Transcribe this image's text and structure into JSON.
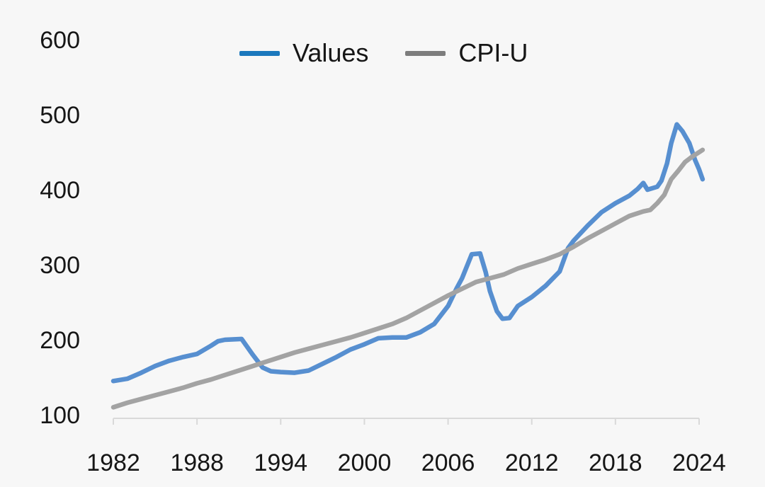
{
  "background": "#f7f7f7",
  "text_color": "#161616",
  "axis_color": "#d9d9d9",
  "legend": {
    "items": [
      {
        "label": "Values",
        "swatch_color": "#1b78bd"
      },
      {
        "label": "CPI-U",
        "swatch_color": "#7d7d7d"
      }
    ]
  },
  "chart_data": {
    "type": "line",
    "title": "",
    "xlabel": "",
    "ylabel": "",
    "grid": false,
    "legend_position": "top-center",
    "x_ticks": [
      1982,
      1988,
      1994,
      2000,
      2006,
      2012,
      2018,
      2024
    ],
    "y_ticks": [
      100,
      200,
      300,
      400,
      500,
      600
    ],
    "xlim": [
      1982,
      2024.3
    ],
    "ylim": [
      100,
      600
    ],
    "series": [
      {
        "name": "Values",
        "color": "#578fd0",
        "points": [
          [
            1982,
            145
          ],
          [
            1983,
            148
          ],
          [
            1984,
            156
          ],
          [
            1985,
            165
          ],
          [
            1986,
            172
          ],
          [
            1987,
            177
          ],
          [
            1988,
            181
          ],
          [
            1989,
            192
          ],
          [
            1989.5,
            198
          ],
          [
            1990,
            200
          ],
          [
            1991.2,
            201
          ],
          [
            1992,
            180
          ],
          [
            1992.7,
            163
          ],
          [
            1993.3,
            158
          ],
          [
            1994,
            157
          ],
          [
            1995,
            156
          ],
          [
            1996,
            159
          ],
          [
            1997,
            168
          ],
          [
            1998,
            177
          ],
          [
            1999,
            187
          ],
          [
            2000,
            194
          ],
          [
            2001,
            202
          ],
          [
            2002,
            203
          ],
          [
            2003,
            203
          ],
          [
            2004,
            210
          ],
          [
            2005,
            221
          ],
          [
            2006,
            245
          ],
          [
            2006.6,
            268
          ],
          [
            2007,
            282
          ],
          [
            2007.7,
            314
          ],
          [
            2008.3,
            315
          ],
          [
            2008.7,
            290
          ],
          [
            2009,
            265
          ],
          [
            2009.5,
            238
          ],
          [
            2009.9,
            228
          ],
          [
            2010.4,
            229
          ],
          [
            2011,
            245
          ],
          [
            2012,
            257
          ],
          [
            2013,
            272
          ],
          [
            2014,
            291
          ],
          [
            2014.6,
            322
          ],
          [
            2015,
            332
          ],
          [
            2016,
            352
          ],
          [
            2017,
            370
          ],
          [
            2018,
            382
          ],
          [
            2019,
            392
          ],
          [
            2019.6,
            401
          ],
          [
            2020,
            409
          ],
          [
            2020.3,
            400
          ],
          [
            2021,
            404
          ],
          [
            2021.3,
            412
          ],
          [
            2021.7,
            435
          ],
          [
            2022,
            462
          ],
          [
            2022.4,
            487
          ],
          [
            2022.8,
            478
          ],
          [
            2023.3,
            462
          ],
          [
            2023.7,
            440
          ],
          [
            2024,
            427
          ],
          [
            2024.25,
            414
          ]
        ]
      },
      {
        "name": "CPI-U",
        "color": "#a3a3a3",
        "points": [
          [
            1982,
            110
          ],
          [
            1983,
            116
          ],
          [
            1984,
            121
          ],
          [
            1985,
            126
          ],
          [
            1986,
            131
          ],
          [
            1987,
            136
          ],
          [
            1988,
            142
          ],
          [
            1989,
            147
          ],
          [
            1990,
            153
          ],
          [
            1991,
            159
          ],
          [
            1992,
            165
          ],
          [
            1993,
            171
          ],
          [
            1994,
            177
          ],
          [
            1995,
            183
          ],
          [
            1996,
            188
          ],
          [
            1997,
            193
          ],
          [
            1998,
            198
          ],
          [
            1999,
            203
          ],
          [
            2000,
            209
          ],
          [
            2001,
            215
          ],
          [
            2002,
            221
          ],
          [
            2003,
            229
          ],
          [
            2004,
            239
          ],
          [
            2005,
            249
          ],
          [
            2006,
            259
          ],
          [
            2007,
            268
          ],
          [
            2008,
            277
          ],
          [
            2009,
            282
          ],
          [
            2010,
            287
          ],
          [
            2011,
            295
          ],
          [
            2012,
            301
          ],
          [
            2013,
            307
          ],
          [
            2014,
            314
          ],
          [
            2015,
            324
          ],
          [
            2016,
            335
          ],
          [
            2017,
            345
          ],
          [
            2018,
            355
          ],
          [
            2019,
            365
          ],
          [
            2020,
            371
          ],
          [
            2020.5,
            373
          ],
          [
            2021,
            382
          ],
          [
            2021.5,
            393
          ],
          [
            2022,
            414
          ],
          [
            2022.5,
            425
          ],
          [
            2023,
            437
          ],
          [
            2023.5,
            444
          ],
          [
            2024,
            450
          ],
          [
            2024.25,
            453
          ]
        ]
      }
    ]
  }
}
